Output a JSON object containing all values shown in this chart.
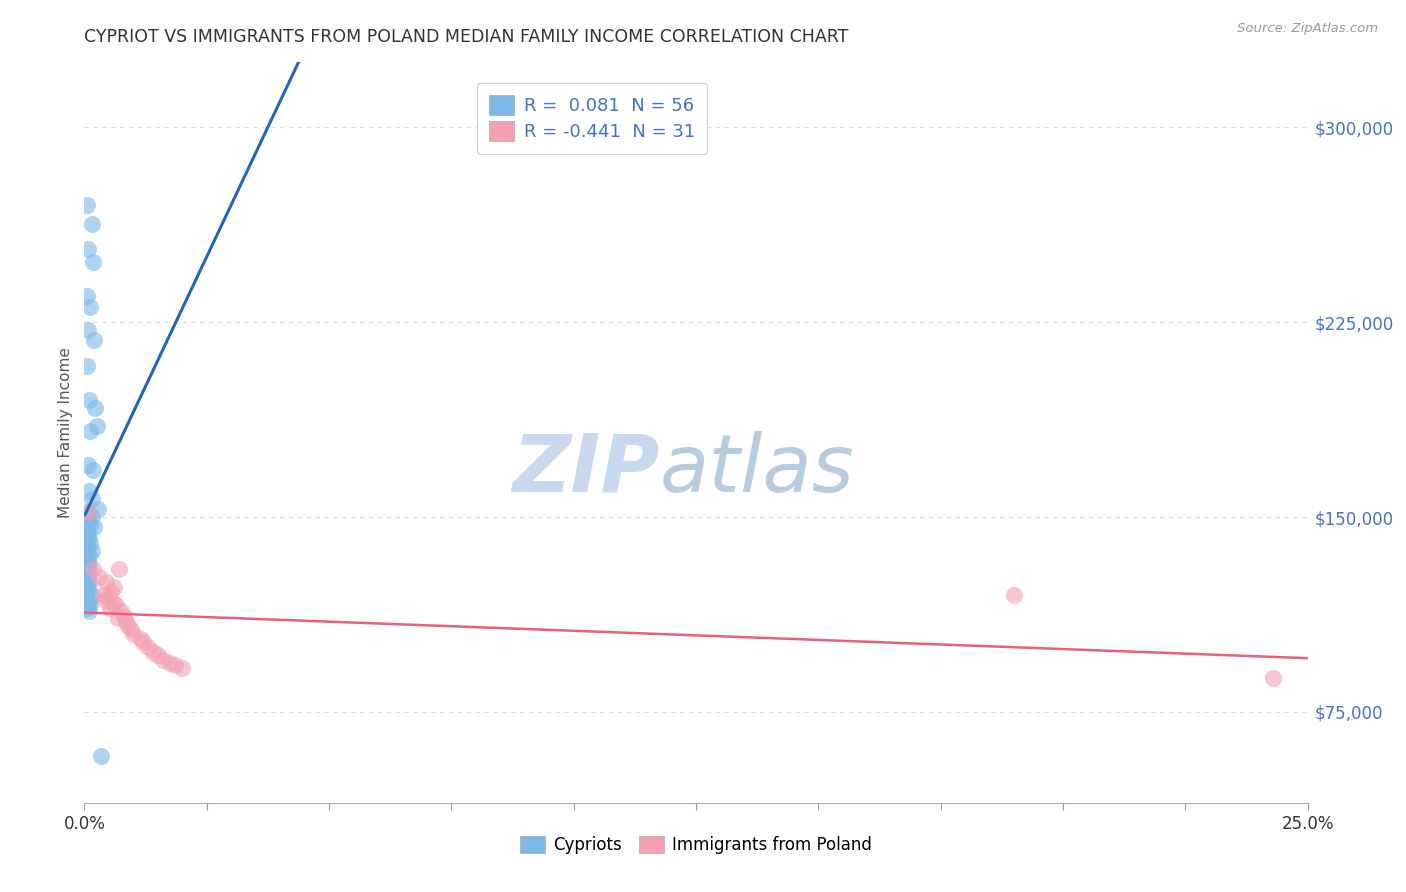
{
  "title": "CYPRIOT VS IMMIGRANTS FROM POLAND MEDIAN FAMILY INCOME CORRELATION CHART",
  "source": "Source: ZipAtlas.com",
  "ylabel": "Median Family Income",
  "yticks": [
    75000,
    150000,
    225000,
    300000
  ],
  "ytick_labels": [
    "$75,000",
    "$150,000",
    "$225,000",
    "$300,000"
  ],
  "xlim": [
    0.0,
    0.25
  ],
  "ylim": [
    40000,
    325000
  ],
  "cypriot_color": "#7ab8e8",
  "poland_color": "#f4a0b0",
  "blue_line_color": "#2266bb",
  "blue_dash_color": "#88bbdd",
  "pink_line_color": "#e8607a",
  "watermark_zip": "ZIP",
  "watermark_atlas": "atlas",
  "watermark_color_zip": "#c8d8ee",
  "watermark_color_atlas": "#b8cce0",
  "cypriot_points": [
    [
      0.0005,
      270000
    ],
    [
      0.0015,
      263000
    ],
    [
      0.0008,
      253000
    ],
    [
      0.0018,
      248000
    ],
    [
      0.0005,
      235000
    ],
    [
      0.0012,
      231000
    ],
    [
      0.0008,
      222000
    ],
    [
      0.002,
      218000
    ],
    [
      0.0005,
      208000
    ],
    [
      0.001,
      195000
    ],
    [
      0.0022,
      192000
    ],
    [
      0.0012,
      183000
    ],
    [
      0.0008,
      170000
    ],
    [
      0.0018,
      168000
    ],
    [
      0.0025,
      185000
    ],
    [
      0.001,
      160000
    ],
    [
      0.0015,
      157000
    ],
    [
      0.0028,
      153000
    ],
    [
      0.0005,
      152000
    ],
    [
      0.001,
      151000
    ],
    [
      0.0015,
      150000
    ],
    [
      0.0008,
      148000
    ],
    [
      0.0012,
      147000
    ],
    [
      0.002,
      146000
    ],
    [
      0.0005,
      145000
    ],
    [
      0.0008,
      144000
    ],
    [
      0.0003,
      143000
    ],
    [
      0.001,
      142000
    ],
    [
      0.0005,
      141000
    ],
    [
      0.0012,
      140000
    ],
    [
      0.0003,
      139000
    ],
    [
      0.0008,
      138000
    ],
    [
      0.0015,
      137000
    ],
    [
      0.0005,
      136000
    ],
    [
      0.001,
      135000
    ],
    [
      0.0003,
      134000
    ],
    [
      0.0008,
      133000
    ],
    [
      0.0005,
      132000
    ],
    [
      0.001,
      131000
    ],
    [
      0.0003,
      130000
    ],
    [
      0.0008,
      129000
    ],
    [
      0.0005,
      128000
    ],
    [
      0.0008,
      127000
    ],
    [
      0.0003,
      126000
    ],
    [
      0.001,
      125000
    ],
    [
      0.0005,
      124000
    ],
    [
      0.0008,
      123000
    ],
    [
      0.0003,
      122000
    ],
    [
      0.0008,
      121000
    ],
    [
      0.0015,
      120000
    ],
    [
      0.0005,
      119000
    ],
    [
      0.001,
      118000
    ],
    [
      0.0008,
      117000
    ],
    [
      0.0012,
      116000
    ],
    [
      0.0005,
      115000
    ],
    [
      0.001,
      114000
    ],
    [
      0.0035,
      58000
    ]
  ],
  "poland_points": [
    [
      0.0008,
      152000
    ],
    [
      0.0018,
      130000
    ],
    [
      0.003,
      127000
    ],
    [
      0.0045,
      125000
    ],
    [
      0.006,
      123000
    ],
    [
      0.0055,
      121000
    ],
    [
      0.0038,
      120000
    ],
    [
      0.0048,
      119000
    ],
    [
      0.0042,
      118000
    ],
    [
      0.007,
      130000
    ],
    [
      0.0058,
      117000
    ],
    [
      0.0065,
      116000
    ],
    [
      0.0052,
      115000
    ],
    [
      0.0075,
      114000
    ],
    [
      0.008,
      112000
    ],
    [
      0.0068,
      111000
    ],
    [
      0.0085,
      110000
    ],
    [
      0.009,
      108000
    ],
    [
      0.0095,
      107000
    ],
    [
      0.01,
      105000
    ],
    [
      0.0115,
      103000
    ],
    [
      0.012,
      102000
    ],
    [
      0.013,
      100000
    ],
    [
      0.014,
      98000
    ],
    [
      0.015,
      97000
    ],
    [
      0.016,
      95000
    ],
    [
      0.0175,
      94000
    ],
    [
      0.0185,
      93000
    ],
    [
      0.02,
      92000
    ],
    [
      0.19,
      120000
    ],
    [
      0.243,
      88000
    ]
  ]
}
